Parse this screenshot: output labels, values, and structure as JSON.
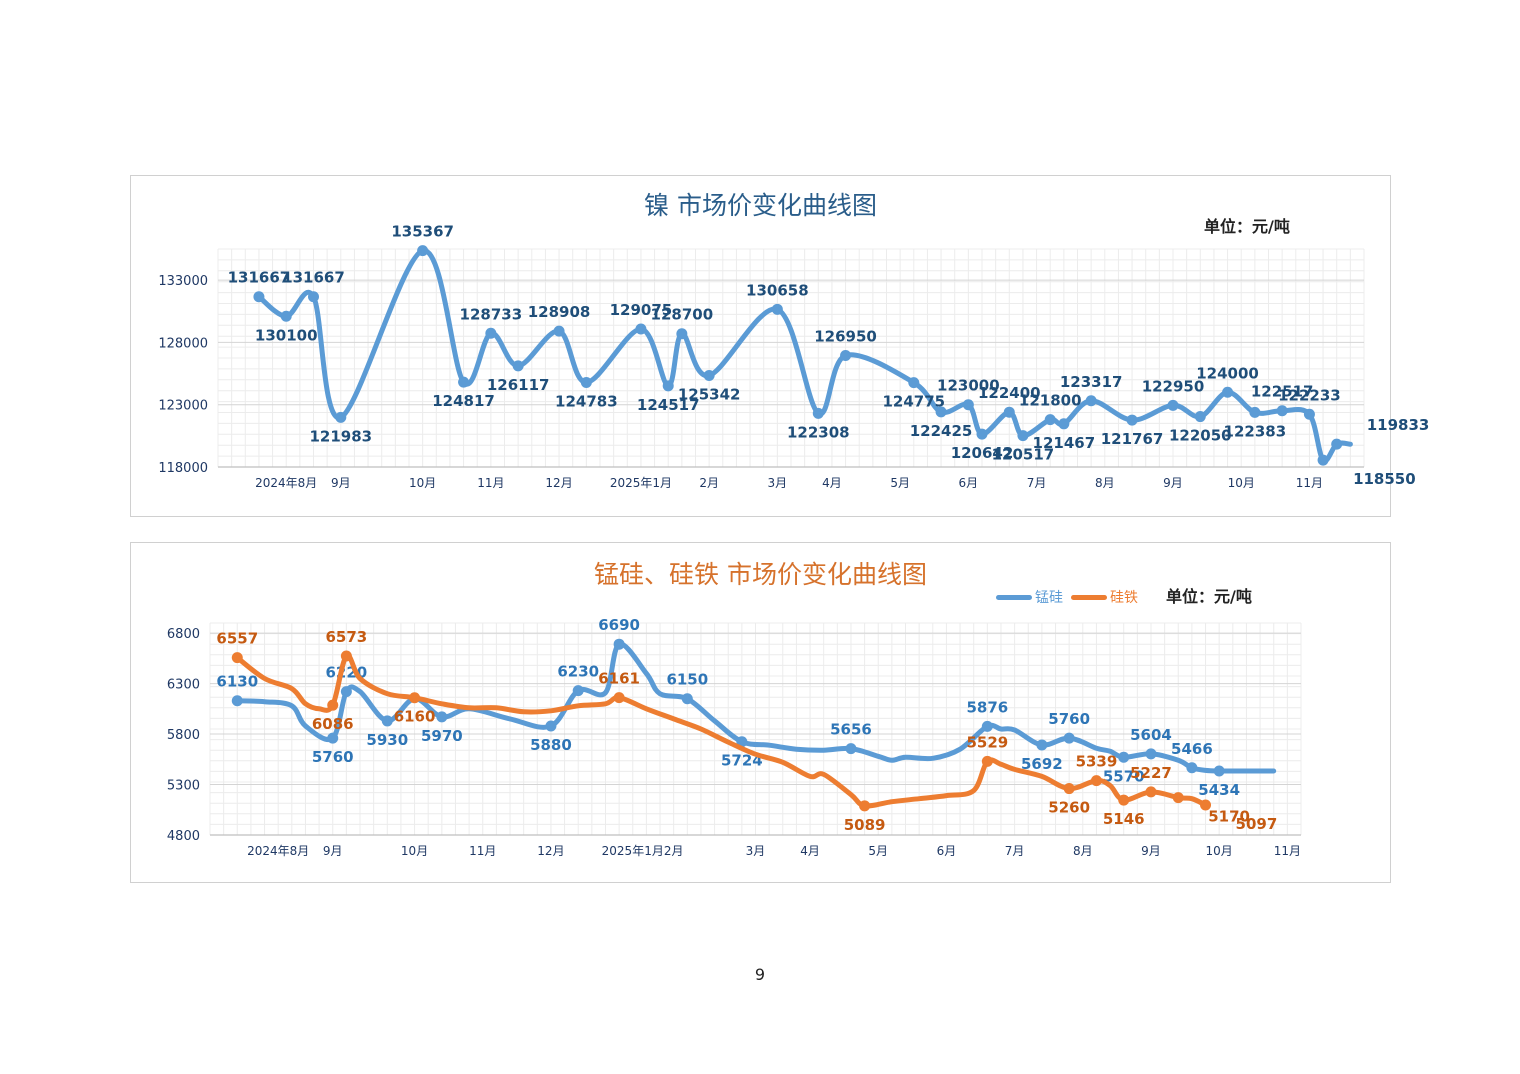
{
  "page_number": "9",
  "chart_data": [
    {
      "type": "line",
      "title": "镍  市场价变化曲线图",
      "unit_label": "单位：元/吨",
      "ylim": [
        118000,
        135500
      ],
      "y_ticks": [
        118000,
        123000,
        128000,
        133000
      ],
      "y_tick_labels": [
        "118000",
        "123000",
        "128000",
        "133000"
      ],
      "x_tick_labels": [
        "2024年8月",
        "9月",
        "10月",
        "11月",
        "12月",
        "2025年1月",
        "2月",
        "3月",
        "4月",
        "5月",
        "6月",
        "7月",
        "8月",
        "9月",
        "10月",
        "11月"
      ],
      "x_ticks": [
        5,
        9,
        15,
        20,
        25,
        31,
        36,
        41,
        45,
        50,
        55,
        60,
        65,
        70,
        75,
        80
      ],
      "colors": {
        "line": "#5b9bd5",
        "label": "#1f4e79"
      },
      "legend": "none",
      "grid": true,
      "series": [
        {
          "x": [
            3,
            5,
            7,
            9,
            15,
            18,
            20,
            22,
            25,
            27,
            31,
            33,
            34,
            36,
            41,
            44,
            46,
            51,
            53,
            55,
            56,
            58,
            59,
            61,
            62,
            64,
            67,
            70,
            72,
            74,
            76,
            78,
            80,
            81,
            82,
            83
          ],
          "values": [
            131667,
            130100,
            131667,
            121983,
            135367,
            124817,
            128733,
            126117,
            128908,
            124783,
            129075,
            124517,
            128700,
            125342,
            130658,
            122308,
            126950,
            124775,
            122425,
            123000,
            120642,
            122400,
            120517,
            121800,
            121467,
            123317,
            121767,
            122950,
            122050,
            124000,
            122383,
            122517,
            122233,
            118550,
            119833,
            119833
          ],
          "labels": [
            {
              "i": 0,
              "t": "131667"
            },
            {
              "i": 1,
              "t": "130100"
            },
            {
              "i": 2,
              "t": "131667"
            },
            {
              "i": 3,
              "t": "121983"
            },
            {
              "i": 4,
              "t": "135367"
            },
            {
              "i": 5,
              "t": "124817"
            },
            {
              "i": 6,
              "t": "128733"
            },
            {
              "i": 7,
              "t": "126117"
            },
            {
              "i": 8,
              "t": "128908"
            },
            {
              "i": 9,
              "t": "124783"
            },
            {
              "i": 10,
              "t": "129075"
            },
            {
              "i": 11,
              "t": "124517"
            },
            {
              "i": 12,
              "t": "128700"
            },
            {
              "i": 13,
              "t": "125342"
            },
            {
              "i": 14,
              "t": "130658"
            },
            {
              "i": 15,
              "t": "122308"
            },
            {
              "i": 16,
              "t": "126950"
            },
            {
              "i": 17,
              "t": "124775"
            },
            {
              "i": 18,
              "t": "122425"
            },
            {
              "i": 19,
              "t": "123000"
            },
            {
              "i": 20,
              "t": "120642"
            },
            {
              "i": 21,
              "t": "122400"
            },
            {
              "i": 22,
              "t": "120517"
            },
            {
              "i": 23,
              "t": "121800"
            },
            {
              "i": 24,
              "t": "121467"
            },
            {
              "i": 25,
              "t": "123317"
            },
            {
              "i": 26,
              "t": "121767"
            },
            {
              "i": 27,
              "t": "122950"
            },
            {
              "i": 28,
              "t": "122050"
            },
            {
              "i": 29,
              "t": "124000"
            },
            {
              "i": 30,
              "t": "122383"
            },
            {
              "i": 31,
              "t": "122517"
            },
            {
              "i": 32,
              "t": "122233"
            },
            {
              "i": 33,
              "t": "118550"
            },
            {
              "i": 34,
              "t": "119833"
            }
          ]
        }
      ]
    },
    {
      "type": "line",
      "title": "锰硅、硅铁  市场价变化曲线图",
      "unit_label": "单位：元/吨",
      "ylim": [
        4800,
        6900
      ],
      "y_ticks": [
        4800,
        5300,
        5800,
        6300,
        6800
      ],
      "y_tick_labels": [
        "4800",
        "5300",
        "5800",
        "6300",
        "6800"
      ],
      "x_tick_labels": [
        "2024年8月",
        "9月",
        "10月",
        "11月",
        "12月",
        "2025年1月",
        "2月",
        "3月",
        "4月",
        "5月",
        "6月",
        "7月",
        "8月",
        "9月",
        "10月",
        "11月"
      ],
      "x_ticks": [
        5,
        9,
        15,
        20,
        25,
        31,
        34,
        40,
        44,
        49,
        54,
        59,
        64,
        69,
        74,
        79
      ],
      "legend": "top-right",
      "grid": true,
      "series": [
        {
          "name": "锰硅",
          "color": "#5b9bd5",
          "label_color": "#2e75b6",
          "x": [
            2,
            4,
            6,
            7,
            9,
            10,
            11,
            13,
            15,
            17,
            19,
            22,
            25,
            27,
            29,
            30,
            32,
            33,
            35,
            37,
            39,
            41,
            43,
            45,
            47,
            49,
            50,
            51,
            53,
            55,
            57,
            58,
            59,
            61,
            63,
            65,
            66,
            67,
            69,
            71,
            72,
            73,
            74,
            75,
            76,
            77,
            78
          ],
          "values": [
            6130,
            6120,
            6080,
            5880,
            5760,
            6220,
            6220,
            5930,
            6150,
            5970,
            6050,
            5950,
            5880,
            6230,
            6210,
            6690,
            6400,
            6200,
            6150,
            5930,
            5724,
            5690,
            5650,
            5640,
            5656,
            5580,
            5540,
            5570,
            5560,
            5650,
            5876,
            5850,
            5840,
            5692,
            5760,
            5660,
            5630,
            5570,
            5604,
            5540,
            5466,
            5440,
            5434,
            5434,
            5434,
            5434,
            5434
          ],
          "labels": [
            {
              "i": 0,
              "t": "6130"
            },
            {
              "i": 4,
              "t": "5760"
            },
            {
              "i": 5,
              "t": "6220"
            },
            {
              "i": 7,
              "t": "5930"
            },
            {
              "i": 9,
              "t": "5970"
            },
            {
              "i": 12,
              "t": "5880"
            },
            {
              "i": 13,
              "t": "6230"
            },
            {
              "i": 15,
              "t": "6690"
            },
            {
              "i": 18,
              "t": "6150"
            },
            {
              "i": 20,
              "t": "5724"
            },
            {
              "i": 24,
              "t": "5656"
            },
            {
              "i": 30,
              "t": "5876"
            },
            {
              "i": 33,
              "t": "5692"
            },
            {
              "i": 34,
              "t": "5760"
            },
            {
              "i": 37,
              "t": "5570"
            },
            {
              "i": 38,
              "t": "5604"
            },
            {
              "i": 40,
              "t": "5466"
            },
            {
              "i": 42,
              "t": "5434"
            }
          ]
        },
        {
          "name": "硅铁",
          "color": "#ed7d31",
          "label_color": "#c55a11",
          "x": [
            2,
            4,
            6,
            7,
            8,
            9,
            10,
            11,
            13,
            15,
            17,
            19,
            21,
            23,
            25,
            27,
            29,
            30,
            32,
            34,
            36,
            38,
            40,
            42,
            44,
            45,
            47,
            48,
            50,
            52,
            54,
            56,
            57,
            58,
            59,
            61,
            63,
            65,
            66,
            67,
            69,
            71,
            72,
            73
          ],
          "values": [
            6557,
            6350,
            6250,
            6100,
            6050,
            6086,
            6573,
            6350,
            6200,
            6160,
            6100,
            6060,
            6060,
            6020,
            6030,
            6080,
            6100,
            6161,
            6050,
            5950,
            5850,
            5720,
            5600,
            5520,
            5380,
            5400,
            5200,
            5089,
            5130,
            5160,
            5190,
            5240,
            5529,
            5500,
            5450,
            5380,
            5260,
            5339,
            5290,
            5146,
            5227,
            5170,
            5160,
            5097
          ],
          "labels": [
            {
              "i": 0,
              "t": "6557"
            },
            {
              "i": 5,
              "t": "6086"
            },
            {
              "i": 6,
              "t": "6573"
            },
            {
              "i": 9,
              "t": "6160"
            },
            {
              "i": 17,
              "t": "6161"
            },
            {
              "i": 27,
              "t": "5089"
            },
            {
              "i": 32,
              "t": "5529"
            },
            {
              "i": 36,
              "t": "5260"
            },
            {
              "i": 37,
              "t": "5339"
            },
            {
              "i": 39,
              "t": "5146"
            },
            {
              "i": 40,
              "t": "5227"
            },
            {
              "i": 41,
              "t": "5170"
            },
            {
              "i": 43,
              "t": "5097"
            }
          ]
        }
      ]
    }
  ]
}
